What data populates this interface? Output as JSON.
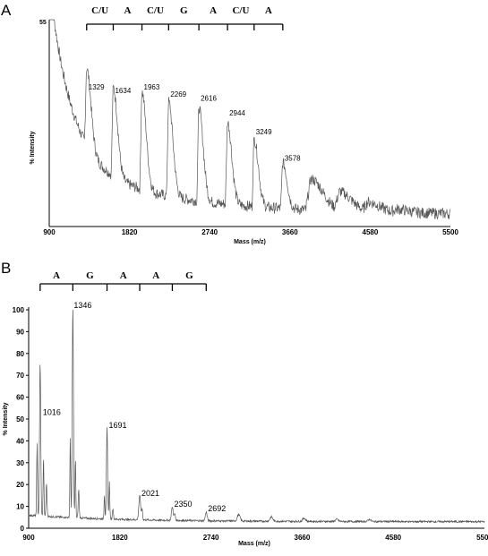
{
  "chart_data": [
    {
      "panel": "A",
      "type": "line",
      "xlabel": "Mass (m/z)",
      "ylabel": "% Intensity",
      "y_top_label": "55",
      "xlim": [
        900,
        5500
      ],
      "x_ticks": [
        "900",
        "1820",
        "2740",
        "3660",
        "4580",
        "5500"
      ],
      "sequence": [
        "C/U",
        "A",
        "C/U",
        "G",
        "A",
        "C/U",
        "A"
      ],
      "ladder_x": [
        1329,
        1634,
        1963,
        2269,
        2616,
        2944,
        3249,
        3578
      ],
      "peaks": [
        {
          "x": 1329,
          "label": "1329",
          "y": 36
        },
        {
          "x": 1634,
          "label": "1634",
          "y": 35
        },
        {
          "x": 1963,
          "label": "1963",
          "y": 36
        },
        {
          "x": 2269,
          "label": "2269",
          "y": 34
        },
        {
          "x": 2616,
          "label": "2616",
          "y": 33
        },
        {
          "x": 2944,
          "label": "2944",
          "y": 29
        },
        {
          "x": 3249,
          "label": "3249",
          "y": 24
        },
        {
          "x": 3578,
          "label": "3578",
          "y": 17
        }
      ],
      "extra_peaks": [
        {
          "x": 3905,
          "y": 12
        },
        {
          "x": 4235,
          "y": 8
        },
        {
          "x": 4560,
          "y": 5
        },
        {
          "x": 4890,
          "y": 3
        },
        {
          "x": 5210,
          "y": 2
        }
      ],
      "grid": false
    },
    {
      "panel": "B",
      "type": "line",
      "xlabel": "Mass (m/z)",
      "ylabel": "% Intensity",
      "xlim": [
        900,
        5500
      ],
      "ylim": [
        0,
        100
      ],
      "x_ticks": [
        "900",
        "1820",
        "2740",
        "3660",
        "4580",
        "5500"
      ],
      "y_ticks": [
        "0",
        "10",
        "20",
        "30",
        "40",
        "50",
        "60",
        "70",
        "80",
        "90",
        "100"
      ],
      "sequence": [
        "A",
        "G",
        "A",
        "A",
        "G"
      ],
      "ladder_x": [
        1016,
        1346,
        1691,
        2021,
        2350,
        2692
      ],
      "peaks": [
        {
          "x": 1016,
          "label": "1016",
          "y": 73
        },
        {
          "x": 1346,
          "label": "1346",
          "y": 100
        },
        {
          "x": 1691,
          "label": "1691",
          "y": 45
        },
        {
          "x": 2021,
          "label": "2021",
          "y": 14
        },
        {
          "x": 2350,
          "label": "2350",
          "y": 9
        },
        {
          "x": 2692,
          "label": "2692",
          "y": 7
        }
      ],
      "extra_peaks": [
        {
          "x": 3020,
          "y": 6
        },
        {
          "x": 3350,
          "y": 5
        },
        {
          "x": 3680,
          "y": 4.5
        },
        {
          "x": 4010,
          "y": 4
        },
        {
          "x": 4340,
          "y": 4
        }
      ],
      "baseline": 3,
      "grid": false
    }
  ]
}
